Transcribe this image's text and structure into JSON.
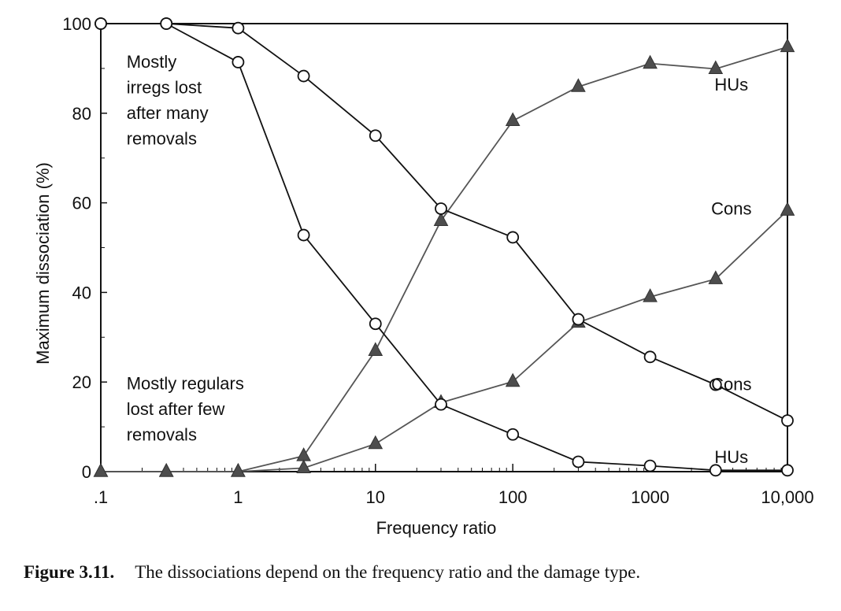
{
  "chart_data": {
    "type": "line",
    "xlabel": "Frequency ratio",
    "ylabel": "Maximum dissociation (%)",
    "x_scale": "log",
    "xlim": [
      0.1,
      10000
    ],
    "ylim": [
      0,
      100
    ],
    "x_ticks": [
      {
        "value": 0.1,
        "label": ".1"
      },
      {
        "value": 1,
        "label": "1"
      },
      {
        "value": 10,
        "label": "10"
      },
      {
        "value": 100,
        "label": "100"
      },
      {
        "value": 1000,
        "label": "1000"
      },
      {
        "value": 10000,
        "label": "10,000"
      }
    ],
    "y_ticks": [
      {
        "value": 0,
        "label": "0"
      },
      {
        "value": 20,
        "label": "20"
      },
      {
        "value": 40,
        "label": "40"
      },
      {
        "value": 60,
        "label": "60"
      },
      {
        "value": 80,
        "label": "80"
      },
      {
        "value": 100,
        "label": "100"
      }
    ],
    "grid": false,
    "legend": "none",
    "series": [
      {
        "key": "irregs-cons",
        "marker": "open-circle",
        "color": "#111111",
        "x": [
          0.1,
          0.3,
          1,
          3,
          10,
          30,
          100,
          300,
          1000,
          3000,
          10000
        ],
        "y": [
          100,
          100,
          99,
          88.3,
          75,
          58.7,
          52.3,
          34,
          25.6,
          19.4,
          11.4
        ]
      },
      {
        "key": "irregs-hus",
        "marker": "open-circle",
        "color": "#111111",
        "x": [
          0.1,
          0.3,
          1,
          3,
          10,
          30,
          100,
          300,
          1000,
          3000,
          10000
        ],
        "y": [
          100,
          100,
          91.4,
          52.8,
          33,
          15,
          8.3,
          2.2,
          1.3,
          0.3,
          0.3
        ]
      },
      {
        "key": "regulars-hus",
        "marker": "filled-triangle",
        "color": "#555555",
        "x": [
          0.1,
          0.3,
          1,
          3,
          10,
          30,
          100,
          300,
          1000,
          3000,
          10000
        ],
        "y": [
          0,
          0,
          0,
          3.5,
          27,
          56,
          78.3,
          85.9,
          91.1,
          89.9,
          94.8
        ]
      },
      {
        "key": "regulars-cons",
        "marker": "filled-triangle",
        "color": "#555555",
        "x": [
          0.1,
          0.3,
          1,
          3,
          10,
          30,
          100,
          300,
          1000,
          3000,
          10000
        ],
        "y": [
          0,
          0,
          0,
          0.8,
          6.2,
          15.4,
          20.1,
          33.3,
          39,
          43,
          58.3
        ]
      }
    ],
    "line_labels": [
      {
        "text": "HUs",
        "x": 3000,
        "y": 86.5
      },
      {
        "text": "Cons",
        "x": 3000,
        "y": 58.8
      },
      {
        "text": "Cons",
        "x": 3000,
        "y": 19.6
      },
      {
        "text": "HUs",
        "x": 3000,
        "y": 3.3
      }
    ],
    "annotations": [
      {
        "lines": [
          "Mostly",
          "irregs lost",
          "after many",
          "removals"
        ],
        "x": 0.15,
        "y": 90.2
      },
      {
        "lines": [
          "Mostly regulars",
          "lost after few",
          "removals"
        ],
        "x": 0.15,
        "y": 18.4
      }
    ]
  },
  "caption": {
    "label": "Figure 3.11.",
    "text": "The dissociations depend on the frequency ratio and the damage type."
  }
}
